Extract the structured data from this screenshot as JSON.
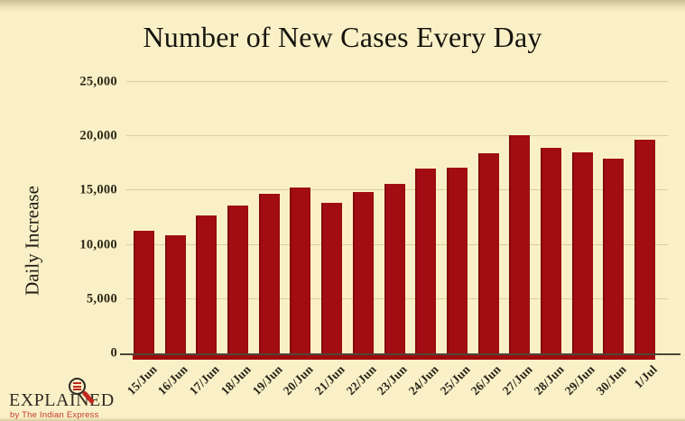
{
  "page": {
    "background_color": "#FAF0C7",
    "bar_color": "#A10D12",
    "gridline_color": "#D9CDA2",
    "axis_line_color": "#4D4734"
  },
  "chart_data": {
    "type": "bar",
    "title": "Number of New Cases Every Day",
    "xlabel": "",
    "ylabel": "Daily Increase",
    "ylim": [
      0,
      25000
    ],
    "grid": "horizontal",
    "legend": "none",
    "bar_color": "#A10D12",
    "categories": [
      "15/Jun",
      "16/Jun",
      "17/Jun",
      "18/Jun",
      "19/Jun",
      "20/Jun",
      "21/Jun",
      "22/Jun",
      "23/Jun",
      "24/Jun",
      "25/Jun",
      "26/Jun",
      "27/Jun",
      "28/Jun",
      "29/Jun",
      "30/Jun",
      "1/Jul"
    ],
    "values": [
      11300,
      10900,
      12700,
      13600,
      14700,
      15300,
      13900,
      14900,
      15600,
      17000,
      17100,
      18400,
      20100,
      18900,
      18500,
      17900,
      19700
    ],
    "yticks": [
      {
        "label": "25,000",
        "value": 25000
      },
      {
        "label": "20,000",
        "value": 20000
      },
      {
        "label": "15,000",
        "value": 15000
      },
      {
        "label": "10,000",
        "value": 10000
      },
      {
        "label": "5,000",
        "value": 5000
      },
      {
        "label": "0",
        "value": 0
      }
    ]
  },
  "branding": {
    "wordmark": "EXPLAINED",
    "tagline": "by The Indian Express",
    "logo_red": "#C1261F",
    "icon": "magnifier-icon"
  }
}
